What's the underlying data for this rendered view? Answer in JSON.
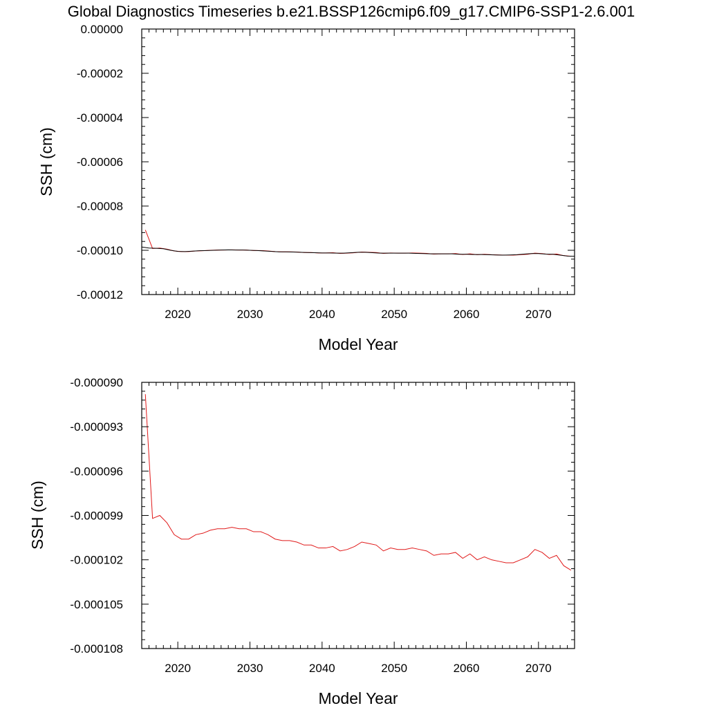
{
  "title": "Global Diagnostics Timeseries b.e21.BSSP126cmip6.f09_g17.CMIP6-SSP1-2.6.001",
  "colors": {
    "series_raw": "#e01818",
    "series_smooth": "#000000",
    "axes": "#000000"
  },
  "chart_data": [
    {
      "type": "line",
      "title": "",
      "xlabel": "Model Year",
      "ylabel": "SSH (cm)",
      "xlim": [
        2015,
        2075
      ],
      "ylim": [
        -0.00012,
        0.0
      ],
      "xticks": [
        2020,
        2030,
        2040,
        2050,
        2060,
        2070
      ],
      "yticks": [
        -0.00012,
        -0.0001,
        -8e-05,
        -6e-05,
        -4e-05,
        -2e-05,
        0.0
      ],
      "ytick_labels": [
        "-0.00012",
        "-0.00010",
        "-0.00008",
        "-0.00006",
        "-0.00004",
        "-0.00002",
        "0.00000"
      ],
      "grid": false,
      "series": [
        {
          "color": "#e01818",
          "x": [
            2015.5,
            2016.5,
            2017.5,
            2018.5,
            2019.5,
            2020.5,
            2021.5,
            2022.5,
            2023.5,
            2024.5,
            2025.5,
            2026.5,
            2027.5,
            2028.5,
            2029.5,
            2030.5,
            2031.5,
            2032.5,
            2033.5,
            2034.5,
            2035.5,
            2036.5,
            2037.5,
            2038.5,
            2039.5,
            2040.5,
            2041.5,
            2042.5,
            2043.5,
            2044.5,
            2045.5,
            2046.5,
            2047.5,
            2048.5,
            2049.5,
            2050.5,
            2051.5,
            2052.5,
            2053.5,
            2054.5,
            2055.5,
            2056.5,
            2057.5,
            2058.5,
            2059.5,
            2060.5,
            2061.5,
            2062.5,
            2063.5,
            2064.5,
            2065.5,
            2066.5,
            2067.5,
            2068.5,
            2069.5,
            2070.5,
            2071.5,
            2072.5,
            2073.5,
            2074.5
          ],
          "y": [
            -9.08e-05,
            -9.92e-05,
            -9.9e-05,
            -9.95e-05,
            -0.0001003,
            -0.0001006,
            -0.0001006,
            -0.0001003,
            -0.0001002,
            -0.0001,
            -9.99e-05,
            -9.99e-05,
            -9.98e-05,
            -9.99e-05,
            -9.99e-05,
            -0.0001001,
            -0.0001001,
            -0.0001003,
            -0.0001006,
            -0.0001007,
            -0.0001007,
            -0.0001008,
            -0.000101,
            -0.000101,
            -0.0001012,
            -0.0001012,
            -0.0001011,
            -0.0001014,
            -0.0001013,
            -0.0001011,
            -0.0001008,
            -0.0001009,
            -0.000101,
            -0.0001014,
            -0.0001012,
            -0.0001013,
            -0.0001013,
            -0.0001012,
            -0.0001013,
            -0.0001014,
            -0.0001017,
            -0.0001016,
            -0.0001016,
            -0.0001015,
            -0.0001019,
            -0.0001016,
            -0.000102,
            -0.0001018,
            -0.000102,
            -0.0001021,
            -0.0001022,
            -0.0001022,
            -0.000102,
            -0.0001018,
            -0.0001013,
            -0.0001015,
            -0.0001019,
            -0.0001017,
            -0.0001024,
            -0.0001027
          ]
        },
        {
          "color": "#000000",
          "x": [
            2015.0,
            2016.0,
            2017.0,
            2018.0,
            2019.0,
            2020.0,
            2021.0,
            2022.0,
            2023.0,
            2024.0,
            2025.0,
            2026.0,
            2027.0,
            2028.0,
            2029.0,
            2030.0,
            2031.0,
            2032.0,
            2033.0,
            2034.0,
            2035.0,
            2036.0,
            2037.0,
            2038.0,
            2039.0,
            2040.0,
            2041.0,
            2042.0,
            2043.0,
            2044.0,
            2045.0,
            2046.0,
            2047.0,
            2048.0,
            2049.0,
            2050.0,
            2051.0,
            2052.0,
            2053.0,
            2054.0,
            2055.0,
            2056.0,
            2057.0,
            2058.0,
            2059.0,
            2060.0,
            2061.0,
            2062.0,
            2063.0,
            2064.0,
            2065.0,
            2066.0,
            2067.0,
            2068.0,
            2069.0,
            2070.0,
            2071.0,
            2072.0,
            2073.0,
            2074.0,
            2075.0
          ],
          "y": [
            -9.85e-05,
            -9.9e-05,
            -9.91e-05,
            -9.93e-05,
            -0.0001,
            -0.0001005,
            -0.0001006,
            -0.0001004,
            -0.0001002,
            -0.0001001,
            -0.0001,
            -9.99e-05,
            -9.98e-05,
            -9.99e-05,
            -9.99e-05,
            -0.0001,
            -0.0001001,
            -0.0001003,
            -0.0001005,
            -0.0001007,
            -0.0001007,
            -0.0001008,
            -0.0001009,
            -0.000101,
            -0.0001011,
            -0.0001012,
            -0.0001012,
            -0.0001013,
            -0.0001013,
            -0.0001011,
            -0.0001009,
            -0.0001009,
            -0.0001011,
            -0.0001013,
            -0.0001013,
            -0.0001013,
            -0.0001013,
            -0.0001013,
            -0.0001014,
            -0.0001015,
            -0.0001016,
            -0.0001016,
            -0.0001016,
            -0.0001016,
            -0.0001018,
            -0.0001018,
            -0.0001019,
            -0.0001019,
            -0.000102,
            -0.0001021,
            -0.0001022,
            -0.0001021,
            -0.000102,
            -0.0001017,
            -0.0001015,
            -0.0001015,
            -0.0001017,
            -0.0001018,
            -0.0001022,
            -0.0001026,
            -0.0001027
          ]
        }
      ]
    },
    {
      "type": "line",
      "title": "",
      "xlabel": "Model Year",
      "ylabel": "SSH (cm)",
      "xlim": [
        2015,
        2075
      ],
      "ylim": [
        -0.000108,
        -9e-05
      ],
      "xticks": [
        2020,
        2030,
        2040,
        2050,
        2060,
        2070
      ],
      "yticks": [
        -0.000108,
        -0.000105,
        -0.000102,
        -9.9e-05,
        -9.6e-05,
        -9.3e-05,
        -9e-05
      ],
      "ytick_labels": [
        "-0.000108",
        "-0.000105",
        "-0.000102",
        "-0.000099",
        "-0.000096",
        "-0.000093",
        "-0.000090"
      ],
      "grid": false,
      "series": [
        {
          "color": "#e01818",
          "x": [
            2015.5,
            2016.5,
            2017.5,
            2018.5,
            2019.5,
            2020.5,
            2021.5,
            2022.5,
            2023.5,
            2024.5,
            2025.5,
            2026.5,
            2027.5,
            2028.5,
            2029.5,
            2030.5,
            2031.5,
            2032.5,
            2033.5,
            2034.5,
            2035.5,
            2036.5,
            2037.5,
            2038.5,
            2039.5,
            2040.5,
            2041.5,
            2042.5,
            2043.5,
            2044.5,
            2045.5,
            2046.5,
            2047.5,
            2048.5,
            2049.5,
            2050.5,
            2051.5,
            2052.5,
            2053.5,
            2054.5,
            2055.5,
            2056.5,
            2057.5,
            2058.5,
            2059.5,
            2060.5,
            2061.5,
            2062.5,
            2063.5,
            2064.5,
            2065.5,
            2066.5,
            2067.5,
            2068.5,
            2069.5,
            2070.5,
            2071.5,
            2072.5,
            2073.5,
            2074.5
          ],
          "y": [
            -9.08e-05,
            -9.92e-05,
            -9.9e-05,
            -9.95e-05,
            -0.0001003,
            -0.0001006,
            -0.0001006,
            -0.0001003,
            -0.0001002,
            -0.0001,
            -9.99e-05,
            -9.99e-05,
            -9.98e-05,
            -9.99e-05,
            -9.99e-05,
            -0.0001001,
            -0.0001001,
            -0.0001003,
            -0.0001006,
            -0.0001007,
            -0.0001007,
            -0.0001008,
            -0.000101,
            -0.000101,
            -0.0001012,
            -0.0001012,
            -0.0001011,
            -0.0001014,
            -0.0001013,
            -0.0001011,
            -0.0001008,
            -0.0001009,
            -0.000101,
            -0.0001014,
            -0.0001012,
            -0.0001013,
            -0.0001013,
            -0.0001012,
            -0.0001013,
            -0.0001014,
            -0.0001017,
            -0.0001016,
            -0.0001016,
            -0.0001015,
            -0.0001019,
            -0.0001016,
            -0.000102,
            -0.0001018,
            -0.000102,
            -0.0001021,
            -0.0001022,
            -0.0001022,
            -0.000102,
            -0.0001018,
            -0.0001013,
            -0.0001015,
            -0.0001019,
            -0.0001017,
            -0.0001024,
            -0.0001027
          ]
        }
      ]
    }
  ]
}
